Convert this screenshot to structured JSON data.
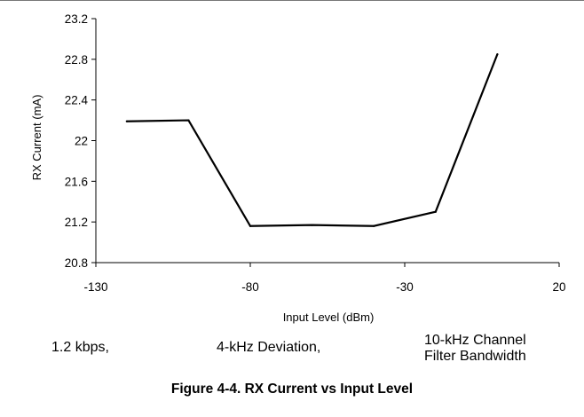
{
  "chart_data": {
    "type": "line",
    "title": "",
    "xlabel": "Input Level (dBm)",
    "ylabel": "RX Current (mA)",
    "xlim": [
      -130,
      20
    ],
    "ylim": [
      20.8,
      23.2
    ],
    "xticks": [
      -130,
      -80,
      -30,
      20
    ],
    "xtick_labels": [
      "-130",
      "-80",
      "-30",
      "20"
    ],
    "yticks": [
      20.8,
      21.2,
      21.6,
      22,
      22.4,
      22.8,
      23.2
    ],
    "ytick_labels": [
      "20.8",
      "21.2",
      "21.6",
      "22",
      "22.4",
      "22.8",
      "23.2"
    ],
    "grid": false,
    "series": [
      {
        "x": [
          -120,
          -100,
          -80,
          -60,
          -40,
          -20,
          0
        ],
        "y": [
          22.19,
          22.2,
          21.16,
          21.17,
          21.16,
          21.3,
          22.85
        ]
      }
    ]
  },
  "notes": {
    "rate": "1.2 kbps,",
    "deviation": "4-kHz Deviation,",
    "bandwidth_line1": "10-kHz Channel",
    "bandwidth_line2": "Filter Bandwidth"
  },
  "caption": "Figure 4-4. RX Current vs Input Level"
}
